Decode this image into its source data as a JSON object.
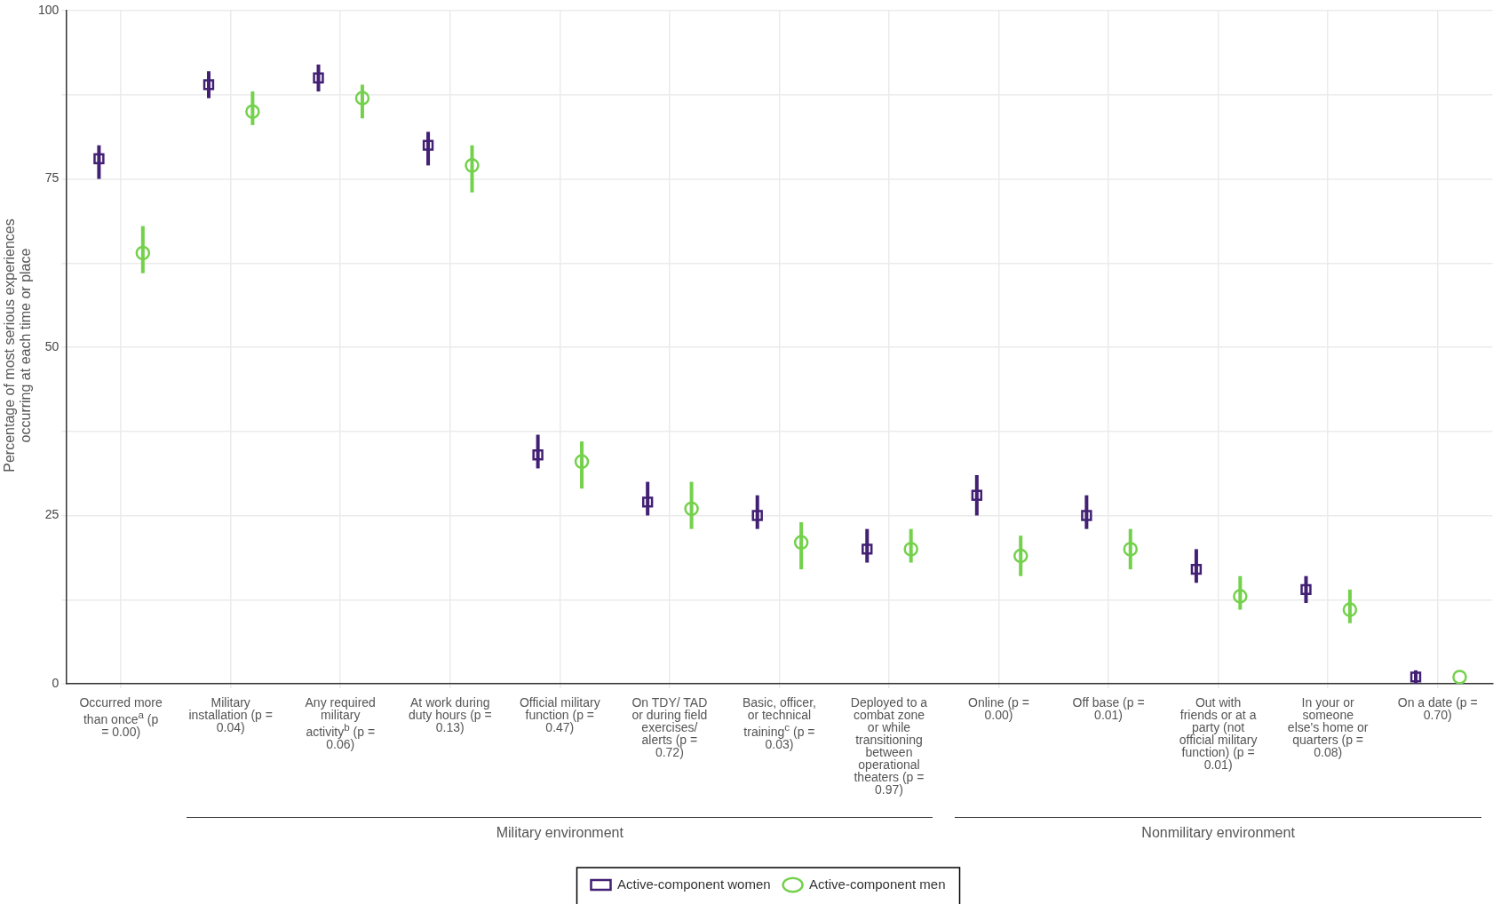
{
  "chart_data": {
    "type": "scatter",
    "ylabel": "Percentage of most serious experiences occurring at each time or place",
    "categories": [
      "Occurred more than once$^{a}$ (p = 0.00)",
      "Military installation (p = 0.04)",
      "Any required military activity$^{b}$ (p = 0.06)",
      "At work during duty hours (p = 0.13)",
      "Official military function (p = 0.47)",
      "On TDY/ TAD or during field exercises/ alerts (p = 0.72)",
      "Basic, officer, or technical training$^{c}$ (p = 0.03)",
      "Deployed to a combat zone or while transitioning between operational theaters (p = 0.97)",
      "Online (p = 0.00)",
      "Off base (p = 0.01)",
      "Out with friends or at a party (not official military function) (p = 0.01)",
      "In your or someone else's home or quarters (p = 0.08)",
      "On a date (p = 0.70)"
    ],
    "series": [
      {
        "name": "Active-component women",
        "color": "#422074",
        "marker": "square",
        "values": [
          78,
          89,
          90,
          80,
          34,
          27,
          25,
          20,
          28,
          25,
          17,
          14,
          1
        ],
        "errors": [
          [
            75,
            80
          ],
          [
            87,
            91
          ],
          [
            88,
            92
          ],
          [
            77,
            82
          ],
          [
            32,
            37
          ],
          [
            25,
            30
          ],
          [
            23,
            28
          ],
          [
            18,
            23
          ],
          [
            25,
            31
          ],
          [
            23,
            28
          ],
          [
            15,
            20
          ],
          [
            12,
            16
          ],
          [
            0,
            2
          ]
        ]
      },
      {
        "name": "Active-component men",
        "color": "#74d14c",
        "marker": "circle",
        "values": [
          64,
          85,
          87,
          77,
          33,
          26,
          21,
          20,
          19,
          20,
          13,
          11,
          1
        ],
        "errors": [
          [
            61,
            68
          ],
          [
            83,
            88
          ],
          [
            84,
            89
          ],
          [
            73,
            80
          ],
          [
            29,
            36
          ],
          [
            23,
            30
          ],
          [
            17,
            24
          ],
          [
            18,
            23
          ],
          [
            16,
            22
          ],
          [
            17,
            23
          ],
          [
            11,
            16
          ],
          [
            9,
            14
          ],
          null
        ]
      }
    ],
    "ylim": [
      0,
      100
    ],
    "yticks": [
      0,
      {
        "value": 12.5,
        "label": null
      },
      25,
      {
        "value": 37.5,
        "label": null
      },
      50,
      {
        "value": 62.5,
        "label": null
      },
      75,
      {
        "value": 87.5,
        "label": null
      },
      100
    ],
    "grid": true,
    "legend": "bottom",
    "annotations": [
      "Military environment",
      "Nonmilitary environment"
    ]
  }
}
